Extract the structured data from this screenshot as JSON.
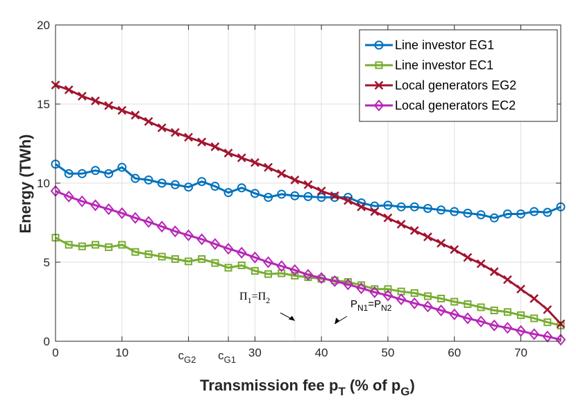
{
  "chart_data": {
    "type": "line",
    "xlabel": "Transmission fee p",
    "xlabel_sub1": "T",
    "xlabel_mid": " (% of p",
    "xlabel_sub2": "G",
    "xlabel_end": ")",
    "ylabel": "Energy (TWh)",
    "xlim": [
      0,
      76
    ],
    "ylim": [
      0,
      20
    ],
    "xticks": [
      0,
      10,
      30,
      40,
      50,
      60,
      70
    ],
    "yticks": [
      0,
      5,
      10,
      15,
      20
    ],
    "grid": true,
    "legend_position": "top-right",
    "special_ticks": [
      {
        "x": 20,
        "label": "c",
        "sub": "G2"
      },
      {
        "x": 26,
        "label": "c",
        "sub": "G1"
      }
    ],
    "annotations": [
      {
        "text_parts": [
          "Π",
          "1",
          "=Π",
          "2"
        ],
        "arrow_to": [
          36,
          1.3
        ]
      },
      {
        "text_parts": [
          "P",
          "N1",
          "=P",
          "N2"
        ],
        "arrow_to": [
          42,
          1.1
        ]
      }
    ],
    "x": [
      0,
      2,
      4,
      6,
      8,
      10,
      12,
      14,
      16,
      18,
      20,
      22,
      24,
      26,
      28,
      30,
      32,
      34,
      36,
      38,
      40,
      42,
      44,
      46,
      48,
      50,
      52,
      54,
      56,
      58,
      60,
      62,
      64,
      66,
      68,
      70,
      72,
      74,
      76
    ],
    "series": [
      {
        "name": "Line investor EG1",
        "color": "#0072BD",
        "marker": "circle",
        "values": [
          11.2,
          10.6,
          10.6,
          10.8,
          10.6,
          11.0,
          10.3,
          10.2,
          10.0,
          9.9,
          9.75,
          10.1,
          9.8,
          9.4,
          9.7,
          9.35,
          9.1,
          9.3,
          9.2,
          9.15,
          9.1,
          9.1,
          9.1,
          8.75,
          8.55,
          8.6,
          8.5,
          8.5,
          8.4,
          8.3,
          8.2,
          8.1,
          8.0,
          7.8,
          8.05,
          8.05,
          8.2,
          8.15,
          8.5
        ]
      },
      {
        "name": "Line investor EC1",
        "color": "#77AC30",
        "marker": "square",
        "values": [
          6.55,
          6.1,
          6.0,
          6.1,
          5.95,
          6.1,
          5.65,
          5.5,
          5.35,
          5.2,
          5.05,
          5.2,
          4.95,
          4.65,
          4.8,
          4.45,
          4.25,
          4.3,
          4.15,
          4.05,
          3.95,
          3.85,
          3.75,
          3.55,
          3.3,
          3.3,
          3.15,
          3.05,
          2.85,
          2.7,
          2.5,
          2.35,
          2.15,
          1.95,
          1.85,
          1.65,
          1.45,
          1.2,
          1.0
        ]
      },
      {
        "name": "Local generators EG2",
        "color": "#A2142F",
        "marker": "x",
        "values": [
          16.2,
          15.9,
          15.5,
          15.2,
          14.9,
          14.6,
          14.3,
          13.9,
          13.5,
          13.2,
          12.9,
          12.6,
          12.3,
          11.9,
          11.6,
          11.3,
          11.0,
          10.6,
          10.2,
          9.9,
          9.5,
          9.2,
          8.9,
          8.5,
          8.2,
          7.8,
          7.4,
          7.0,
          6.6,
          6.2,
          5.8,
          5.3,
          4.9,
          4.4,
          3.9,
          3.3,
          2.7,
          2.0,
          1.1
        ]
      },
      {
        "name": "Local generators EC2",
        "color": "#B626B6",
        "marker": "diamond",
        "values": [
          9.5,
          9.15,
          8.85,
          8.6,
          8.35,
          8.1,
          7.8,
          7.55,
          7.25,
          6.95,
          6.7,
          6.45,
          6.15,
          5.85,
          5.6,
          5.3,
          5.0,
          4.75,
          4.5,
          4.2,
          4.0,
          3.8,
          3.6,
          3.35,
          3.1,
          2.9,
          2.65,
          2.4,
          2.2,
          1.95,
          1.7,
          1.45,
          1.25,
          1.0,
          0.85,
          0.65,
          0.45,
          0.3,
          0.1
        ]
      }
    ]
  }
}
